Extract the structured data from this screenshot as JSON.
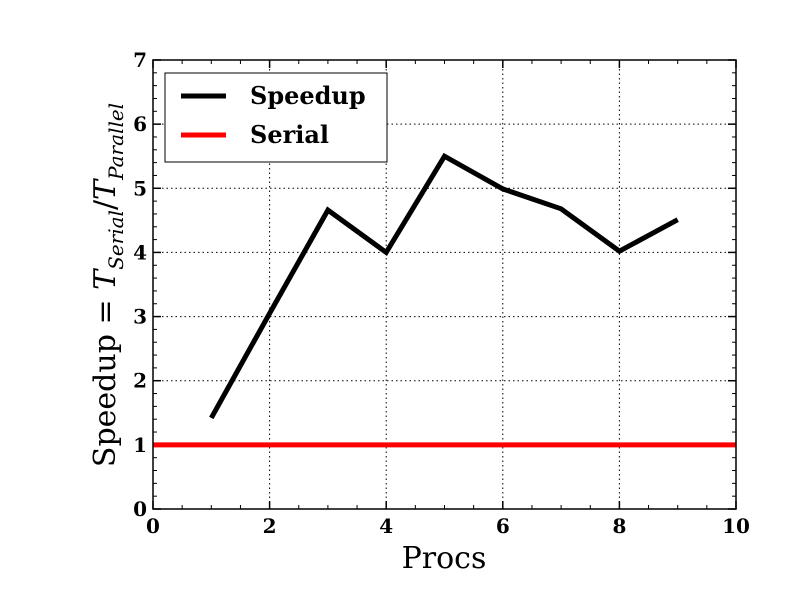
{
  "chart_data": {
    "type": "line",
    "title": "",
    "xlabel": "Procs",
    "ylabel": {
      "prefix": "Speedup = ",
      "t1": "T",
      "sub1": "Serial",
      "slash": "/",
      "t2": "T",
      "sub2": "Parallel"
    },
    "xlim": [
      0,
      10
    ],
    "ylim": [
      0,
      7
    ],
    "xticks": [
      0,
      2,
      4,
      6,
      8,
      10
    ],
    "yticks": [
      0,
      1,
      2,
      3,
      4,
      5,
      6,
      7
    ],
    "grid": true,
    "legend_position": "top-left",
    "series": [
      {
        "name": "Speedup",
        "color": "#000000",
        "x": [
          1,
          2,
          3,
          4,
          5,
          6,
          7,
          8,
          9
        ],
        "y": [
          1.42,
          3.05,
          4.66,
          4.0,
          5.5,
          4.99,
          4.68,
          4.02,
          4.51
        ]
      },
      {
        "name": "Serial",
        "color": "#ff0000",
        "x": [
          0,
          10
        ],
        "y": [
          1.0,
          1.0
        ]
      }
    ]
  }
}
